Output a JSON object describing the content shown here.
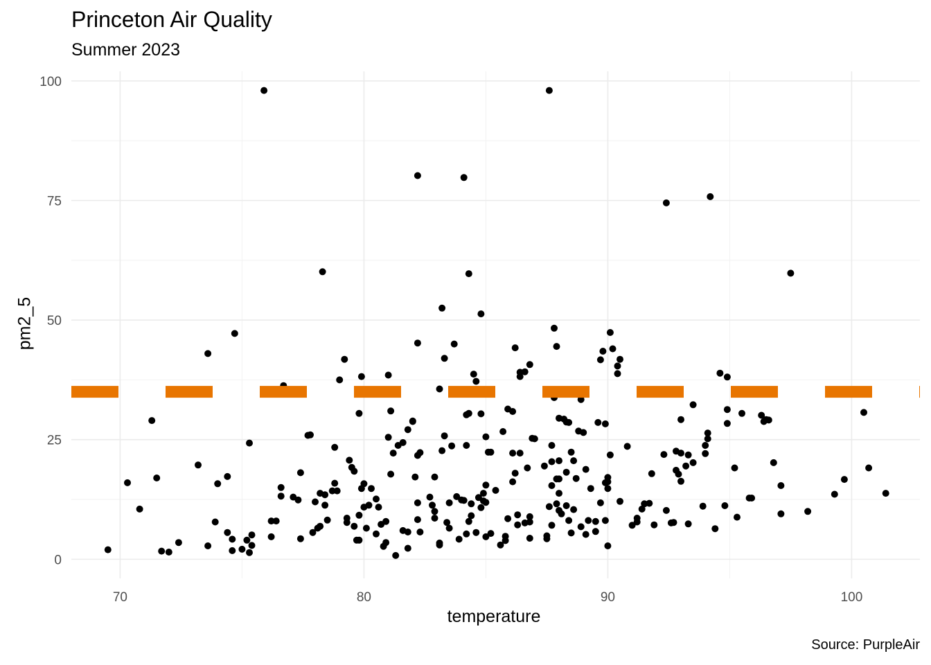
{
  "chart_data": {
    "type": "scatter",
    "title": "Princeton Air Quality",
    "subtitle": "Summer 2023",
    "caption": "Source: PurpleAir",
    "xlabel": "temperature",
    "ylabel": "pm2_5",
    "xlim": [
      68,
      102.8
    ],
    "ylim": [
      -4,
      102
    ],
    "x_ticks": [
      70,
      80,
      90,
      100
    ],
    "y_ticks": [
      0,
      25,
      50,
      75,
      100
    ],
    "grid": true,
    "point_color": "#000000",
    "reference_line": {
      "orientation": "horizontal",
      "y": 35,
      "style": "dashed",
      "color": "#E87500"
    },
    "points": [
      [
        69.5,
        2
      ],
      [
        70.3,
        16
      ],
      [
        70.8,
        10.5
      ],
      [
        71.3,
        29
      ],
      [
        71.5,
        17
      ],
      [
        71.7,
        1.7
      ],
      [
        72,
        1.5
      ],
      [
        72.4,
        3.5
      ],
      [
        73.2,
        19.7
      ],
      [
        73.6,
        2.8
      ],
      [
        73.6,
        43
      ],
      [
        73.9,
        7.8
      ],
      [
        74,
        15.8
      ],
      [
        74.4,
        17.3
      ],
      [
        74.4,
        5.6
      ],
      [
        74.6,
        4.2
      ],
      [
        74.6,
        1.8
      ],
      [
        74.7,
        47.2
      ],
      [
        75,
        2.1
      ],
      [
        75.2,
        4
      ],
      [
        75.3,
        1.4
      ],
      [
        75.3,
        24.3
      ],
      [
        75.4,
        2.9
      ],
      [
        75.4,
        5.1
      ],
      [
        75.9,
        98
      ],
      [
        76.2,
        8
      ],
      [
        76.2,
        4.7
      ],
      [
        76.4,
        8
      ],
      [
        76.6,
        15
      ],
      [
        76.6,
        13.2
      ],
      [
        76.7,
        36.3
      ],
      [
        77.1,
        13
      ],
      [
        77.3,
        12.4
      ],
      [
        77.4,
        4.3
      ],
      [
        77.4,
        18.1
      ],
      [
        77.7,
        25.9
      ],
      [
        77.8,
        26
      ],
      [
        77.9,
        5.6
      ],
      [
        78,
        12
      ],
      [
        78.1,
        6.5
      ],
      [
        78.2,
        13.8
      ],
      [
        78.2,
        6.9
      ],
      [
        78.3,
        60.1
      ],
      [
        78.4,
        13.5
      ],
      [
        78.4,
        11.3
      ],
      [
        78.5,
        8.2
      ],
      [
        78.7,
        14.3
      ],
      [
        78.8,
        23.4
      ],
      [
        78.8,
        15.9
      ],
      [
        78.9,
        14.3
      ],
      [
        79,
        37.5
      ],
      [
        79.2,
        41.8
      ],
      [
        79.3,
        7.7
      ],
      [
        79.3,
        8.6
      ],
      [
        79.4,
        20.7
      ],
      [
        79.5,
        19.2
      ],
      [
        79.6,
        6.9
      ],
      [
        79.6,
        18.4
      ],
      [
        79.7,
        4
      ],
      [
        79.8,
        30.5
      ],
      [
        79.8,
        9.2
      ],
      [
        79.8,
        4
      ],
      [
        79.9,
        38.2
      ],
      [
        79.9,
        14.8
      ],
      [
        80,
        10.9
      ],
      [
        80,
        15.8
      ],
      [
        80.1,
        6.5
      ],
      [
        80.2,
        11.3
      ],
      [
        80.3,
        14.8
      ],
      [
        80.5,
        12.6
      ],
      [
        80.5,
        5.3
      ],
      [
        80.6,
        10.9
      ],
      [
        80.7,
        7.3
      ],
      [
        80.8,
        2.7
      ],
      [
        80.9,
        3.5
      ],
      [
        80.9,
        7.9
      ],
      [
        81,
        25.5
      ],
      [
        81,
        38.5
      ],
      [
        81.1,
        17.8
      ],
      [
        81.1,
        31
      ],
      [
        81.2,
        22.2
      ],
      [
        81.3,
        0.8
      ],
      [
        81.4,
        23.8
      ],
      [
        81.6,
        6
      ],
      [
        81.6,
        24.4
      ],
      [
        81.8,
        27.1
      ],
      [
        81.8,
        2.3
      ],
      [
        81.8,
        5.7
      ],
      [
        82,
        28.9
      ],
      [
        82,
        28.8
      ],
      [
        82.1,
        17.2
      ],
      [
        82.2,
        80.2
      ],
      [
        82.2,
        8.3
      ],
      [
        82.2,
        21.7
      ],
      [
        82.2,
        45.2
      ],
      [
        82.2,
        11.8
      ],
      [
        82.3,
        5.7
      ],
      [
        82.3,
        22.3
      ],
      [
        82.7,
        13
      ],
      [
        82.8,
        11.3
      ],
      [
        82.9,
        10
      ],
      [
        82.9,
        17.2
      ],
      [
        82.9,
        8.6
      ],
      [
        83.1,
        35.6
      ],
      [
        83.1,
        3.4
      ],
      [
        83.1,
        3
      ],
      [
        83.2,
        22.7
      ],
      [
        83.2,
        52.5
      ],
      [
        83.3,
        42
      ],
      [
        83.3,
        25.8
      ],
      [
        83.4,
        7.7
      ],
      [
        83.5,
        11.8
      ],
      [
        83.5,
        6.5
      ],
      [
        83.6,
        23.7
      ],
      [
        83.7,
        45
      ],
      [
        83.8,
        13.1
      ],
      [
        83.9,
        4.2
      ],
      [
        84,
        12.4
      ],
      [
        84.1,
        12.3
      ],
      [
        84.1,
        79.8
      ],
      [
        84.2,
        30.2
      ],
      [
        84.2,
        23.8
      ],
      [
        84.2,
        5.3
      ],
      [
        84.3,
        59.7
      ],
      [
        84.3,
        30.5
      ],
      [
        84.3,
        7.9
      ],
      [
        84.4,
        11.6
      ],
      [
        84.4,
        9.1
      ],
      [
        84.5,
        38.7
      ],
      [
        84.6,
        37.2
      ],
      [
        84.6,
        5.6
      ],
      [
        84.7,
        12.9
      ],
      [
        84.8,
        10.8
      ],
      [
        84.8,
        51.3
      ],
      [
        84.8,
        30.4
      ],
      [
        84.9,
        13.8
      ],
      [
        84.9,
        12.2
      ],
      [
        85,
        25.6
      ],
      [
        85,
        15.5
      ],
      [
        85,
        4.7
      ],
      [
        85,
        11.9
      ],
      [
        85.1,
        22.4
      ],
      [
        85.2,
        22.4
      ],
      [
        85.2,
        5.4
      ],
      [
        85.4,
        14.4
      ],
      [
        85.6,
        3
      ],
      [
        85.7,
        26.7
      ],
      [
        85.8,
        3.9
      ],
      [
        85.8,
        4.8
      ],
      [
        85.9,
        31.4
      ],
      [
        85.9,
        8.5
      ],
      [
        86.1,
        30.9
      ],
      [
        86.1,
        22.2
      ],
      [
        86.1,
        16.2
      ],
      [
        86.2,
        44.2
      ],
      [
        86.2,
        18
      ],
      [
        86.3,
        7.2
      ],
      [
        86.3,
        9.3
      ],
      [
        86.4,
        39.1
      ],
      [
        86.4,
        38.2
      ],
      [
        86.4,
        22.2
      ],
      [
        86.6,
        39.2
      ],
      [
        86.6,
        7.6
      ],
      [
        86.7,
        19.1
      ],
      [
        86.8,
        8.9
      ],
      [
        86.8,
        40.7
      ],
      [
        86.8,
        7.8
      ],
      [
        86.8,
        4.4
      ],
      [
        86.9,
        25.3
      ],
      [
        87,
        25.2
      ],
      [
        87.4,
        19.5
      ],
      [
        87.5,
        4.3
      ],
      [
        87.5,
        4.9
      ],
      [
        87.6,
        11
      ],
      [
        87.6,
        98
      ],
      [
        87.7,
        23.8
      ],
      [
        87.7,
        20.4
      ],
      [
        87.7,
        15.4
      ],
      [
        87.7,
        7.1
      ],
      [
        87.8,
        33.8
      ],
      [
        87.8,
        48.3
      ],
      [
        87.9,
        11.6
      ],
      [
        87.9,
        16.8
      ],
      [
        87.9,
        44.5
      ],
      [
        88,
        20.6
      ],
      [
        88,
        29.5
      ],
      [
        88,
        16.8
      ],
      [
        88,
        10.2
      ],
      [
        88,
        13.8
      ],
      [
        88.1,
        9.5
      ],
      [
        88.2,
        29.3
      ],
      [
        88.3,
        18.2
      ],
      [
        88.3,
        11.2
      ],
      [
        88.3,
        28.7
      ],
      [
        88.4,
        8.1
      ],
      [
        88.4,
        28.6
      ],
      [
        88.5,
        22.4
      ],
      [
        88.5,
        5.5
      ],
      [
        88.6,
        20.6
      ],
      [
        88.6,
        10.4
      ],
      [
        88.7,
        16.9
      ],
      [
        88.8,
        26.8
      ],
      [
        88.9,
        6.8
      ],
      [
        88.9,
        33.4
      ],
      [
        89,
        26.5
      ],
      [
        89.1,
        5.2
      ],
      [
        89.1,
        18.8
      ],
      [
        89.2,
        8.1
      ],
      [
        89.3,
        14.8
      ],
      [
        89.5,
        7.9
      ],
      [
        89.5,
        5.8
      ],
      [
        89.6,
        28.6
      ],
      [
        89.7,
        41.7
      ],
      [
        89.7,
        11.8
      ],
      [
        89.8,
        43.5
      ],
      [
        89.9,
        28.3
      ],
      [
        89.9,
        16
      ],
      [
        89.9,
        8.1
      ],
      [
        90,
        16.2
      ],
      [
        90,
        17.1
      ],
      [
        90,
        14.8
      ],
      [
        90,
        2.8
      ],
      [
        90.1,
        47.4
      ],
      [
        90.1,
        21.8
      ],
      [
        90.2,
        44
      ],
      [
        90.4,
        40.4
      ],
      [
        90.4,
        38.8
      ],
      [
        90.5,
        41.8
      ],
      [
        90.5,
        12.1
      ],
      [
        90.8,
        23.6
      ],
      [
        91,
        7.1
      ],
      [
        91.2,
        7.8
      ],
      [
        91.2,
        8.6
      ],
      [
        91.4,
        10.5
      ],
      [
        91.5,
        11.6
      ],
      [
        91.7,
        11.7
      ],
      [
        91.8,
        17.9
      ],
      [
        91.9,
        7.2
      ],
      [
        92.3,
        21.9
      ],
      [
        92.4,
        10.2
      ],
      [
        92.4,
        74.5
      ],
      [
        92.6,
        7.6
      ],
      [
        92.7,
        7.7
      ],
      [
        92.8,
        22.6
      ],
      [
        92.8,
        18.6
      ],
      [
        92.9,
        17.8
      ],
      [
        93,
        29.2
      ],
      [
        93,
        22.2
      ],
      [
        93,
        16.3
      ],
      [
        93.2,
        19.5
      ],
      [
        93.3,
        21.8
      ],
      [
        93.3,
        7.4
      ],
      [
        93.5,
        32.3
      ],
      [
        93.5,
        20.2
      ],
      [
        93.9,
        11.1
      ],
      [
        94,
        23.8
      ],
      [
        94,
        22.1
      ],
      [
        94.1,
        25.2
      ],
      [
        94.1,
        26.4
      ],
      [
        94.2,
        75.8
      ],
      [
        94.4,
        6.4
      ],
      [
        94.6,
        38.9
      ],
      [
        94.8,
        11.2
      ],
      [
        94.9,
        28.4
      ],
      [
        94.9,
        31.3
      ],
      [
        94.9,
        38.1
      ],
      [
        95.2,
        19.1
      ],
      [
        95.3,
        8.8
      ],
      [
        95.5,
        30.5
      ],
      [
        95.8,
        12.8
      ],
      [
        95.9,
        12.8
      ],
      [
        96.3,
        30.1
      ],
      [
        96.4,
        28.8
      ],
      [
        96.5,
        29.2
      ],
      [
        96.6,
        29.1
      ],
      [
        96.8,
        20.2
      ],
      [
        97.1,
        15.4
      ],
      [
        97.1,
        9.5
      ],
      [
        97.5,
        59.8
      ],
      [
        98.2,
        10
      ],
      [
        99.3,
        13.6
      ],
      [
        99.7,
        16.7
      ],
      [
        100.5,
        30.7
      ],
      [
        100.7,
        19.1
      ],
      [
        101.4,
        13.8
      ]
    ]
  }
}
